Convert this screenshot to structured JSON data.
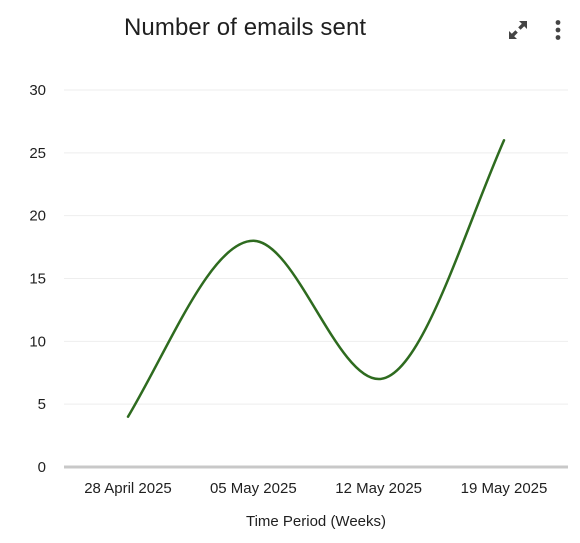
{
  "header": {
    "title": "Number of emails sent",
    "expand_icon": "expand-diagonal-arrows-icon",
    "menu_icon": "vertical-dots-icon"
  },
  "colors": {
    "line": "#2e6b1f",
    "gridline": "#eeeeee",
    "baseline": "#c8c8c8",
    "text": "#1f1f1f",
    "icon": "#444444"
  },
  "chart_data": {
    "type": "line",
    "title": "Number of emails sent",
    "xlabel": "Time Period (Weeks)",
    "ylabel": "",
    "categories": [
      "28 April 2025",
      "05 May 2025",
      "12 May 2025",
      "19 May 2025"
    ],
    "series": [
      {
        "values": [
          4,
          18,
          7,
          26
        ]
      }
    ],
    "ylim": [
      0,
      30
    ],
    "yticks": [
      0,
      5,
      10,
      15,
      20,
      25,
      30
    ],
    "curve": "smooth",
    "grid": true,
    "legend": "none"
  }
}
